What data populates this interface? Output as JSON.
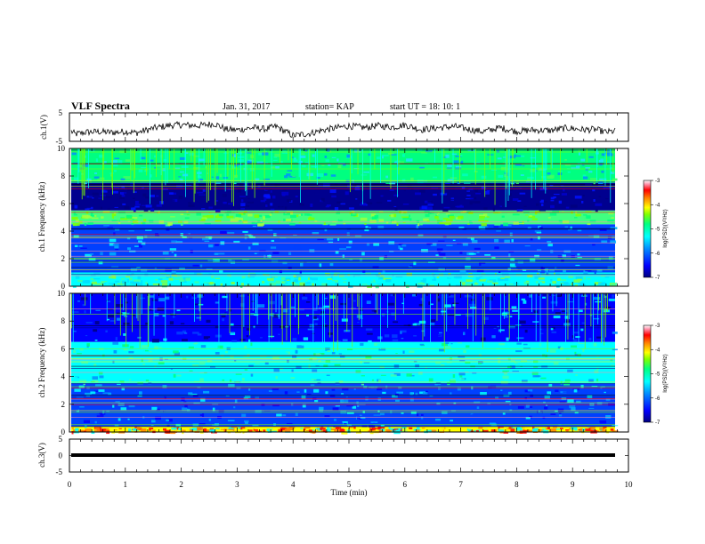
{
  "header": {
    "title": "VLF Spectra",
    "date": "Jan. 31, 2017",
    "station": "station= KAP",
    "start_ut": "start  UT =   18: 10: 1"
  },
  "chart_data": [
    {
      "type": "line",
      "panel": "ch1-waveform",
      "ylabel": "ch.1(V)",
      "xlim": [
        0,
        10
      ],
      "ylim": [
        -5,
        5
      ],
      "y_ticks": [
        "5",
        "-5"
      ],
      "x": [
        0,
        0.1,
        0.3,
        0.5,
        0.8,
        1.0,
        1.2,
        1.5,
        1.8,
        2.0,
        2.3,
        2.5,
        2.6,
        2.8,
        3.0,
        3.3,
        3.5,
        3.7,
        4.0,
        4.3,
        4.5,
        4.8,
        5.0,
        5.3,
        5.5,
        5.8,
        6.0,
        6.3,
        6.6,
        6.9,
        7.1,
        7.4,
        7.7,
        8.0,
        8.3,
        8.6,
        8.9,
        9.2,
        9.4,
        9.6,
        9.8
      ],
      "values": [
        -1.0,
        -2.5,
        -1.8,
        -1.6,
        -1.9,
        -1.5,
        -2.0,
        -0.4,
        0.6,
        0.8,
        0.5,
        1.0,
        1.2,
        -0.8,
        -1.0,
        -0.2,
        -0.7,
        0.2,
        -3.0,
        -2.2,
        -1.2,
        -0.2,
        0.4,
        -0.2,
        0.5,
        0.0,
        0.8,
        -0.9,
        -0.2,
        0.2,
        -0.6,
        -1.6,
        -0.2,
        -1.5,
        -1.0,
        -1.2,
        -0.3,
        -0.9,
        -0.8,
        -1.8,
        -1.3
      ],
      "color": "#000000"
    },
    {
      "type": "heatmap",
      "panel": "ch1-spectrogram",
      "ylabel": "ch.1 Frequency (kHz)",
      "xlim": [
        0,
        10
      ],
      "ylim": [
        0,
        10
      ],
      "y_ticks": [
        "0",
        "2",
        "4",
        "6",
        "8",
        "10"
      ],
      "colorbar": {
        "label": "log(PSD)(V²/Hz)",
        "range": [
          -7,
          -3
        ],
        "ticks": [
          "-3",
          "-4",
          "-5",
          "-6",
          "-7"
        ]
      },
      "bands": [
        {
          "from": 0,
          "to": 1.0,
          "level": "cyan-green"
        },
        {
          "from": 1.0,
          "to": 4.5,
          "level": "blue-cyan"
        },
        {
          "from": 4.5,
          "to": 5.5,
          "level": "green"
        },
        {
          "from": 5.5,
          "to": 7.5,
          "level": "dark blue"
        },
        {
          "from": 7.5,
          "to": 10,
          "level": "green with spikes"
        }
      ]
    },
    {
      "type": "heatmap",
      "panel": "ch2-spectrogram",
      "ylabel": "ch.2 Frequency (kHz)",
      "xlim": [
        0,
        10
      ],
      "ylim": [
        0,
        10
      ],
      "y_ticks": [
        "0",
        "2",
        "4",
        "6",
        "8",
        "10"
      ],
      "colorbar": {
        "label": "log(PSD)(V²/Hz)",
        "range": [
          -7,
          -3
        ],
        "ticks": [
          "-3",
          "-4",
          "-5",
          "-6",
          "-7"
        ]
      },
      "bands": [
        {
          "from": 0,
          "to": 0.4,
          "level": "yellow-red"
        },
        {
          "from": 0.4,
          "to": 3.5,
          "level": "blue-cyan"
        },
        {
          "from": 3.5,
          "to": 6.5,
          "level": "green-cyan"
        },
        {
          "from": 6.5,
          "to": 10,
          "level": "blue with spikes"
        }
      ]
    },
    {
      "type": "line",
      "panel": "ch3-waveform",
      "ylabel": "ch.3(V)",
      "xlim": [
        0,
        10
      ],
      "ylim": [
        -5,
        5
      ],
      "y_ticks": [
        "5",
        "0",
        "-5"
      ],
      "x": [
        0,
        9.8
      ],
      "values": [
        0,
        0
      ],
      "color": "#000000"
    }
  ],
  "xaxis": {
    "label": "Time (min)",
    "ticks": [
      "0",
      "1",
      "2",
      "3",
      "4",
      "5",
      "6",
      "7",
      "8",
      "9",
      "10"
    ]
  },
  "colormap": [
    "#00007f",
    "#0000ff",
    "#0090ff",
    "#00ffff",
    "#00ff80",
    "#80ff00",
    "#ffff00",
    "#ff8000",
    "#ff0000",
    "#ff7f9f",
    "#ffffff"
  ]
}
